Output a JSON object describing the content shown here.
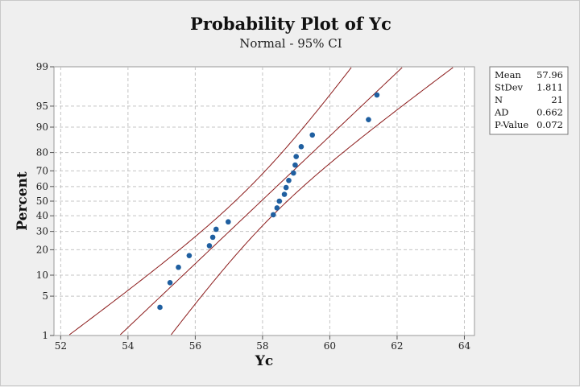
{
  "chart_data": {
    "type": "scatter",
    "title": "Probability Plot of Yc",
    "subtitle": "Normal - 95% CI",
    "xlabel": "Yc",
    "ylabel": "Percent",
    "xlim": [
      51.8,
      64.3
    ],
    "x_ticks": [
      52,
      54,
      56,
      58,
      60,
      62,
      64
    ],
    "y_ticks": [
      1,
      5,
      10,
      20,
      30,
      40,
      50,
      60,
      70,
      80,
      90,
      95,
      99
    ],
    "y_scale": "normal-probability",
    "ylim": [
      1,
      99
    ],
    "grid": true,
    "mean": 57.96,
    "stdev": 1.811,
    "ci_z": 1.96,
    "points": [
      {
        "x": 54.95,
        "y": 3.3
      },
      {
        "x": 55.25,
        "y": 7.9
      },
      {
        "x": 55.5,
        "y": 12.6
      },
      {
        "x": 55.82,
        "y": 17.3
      },
      {
        "x": 56.42,
        "y": 22.0
      },
      {
        "x": 56.52,
        "y": 26.6
      },
      {
        "x": 56.62,
        "y": 31.3
      },
      {
        "x": 56.98,
        "y": 36.0
      },
      {
        "x": 58.32,
        "y": 40.7
      },
      {
        "x": 58.43,
        "y": 45.3
      },
      {
        "x": 58.5,
        "y": 50.0
      },
      {
        "x": 58.65,
        "y": 54.7
      },
      {
        "x": 58.7,
        "y": 59.3
      },
      {
        "x": 58.78,
        "y": 64.0
      },
      {
        "x": 58.92,
        "y": 68.7
      },
      {
        "x": 58.97,
        "y": 73.4
      },
      {
        "x": 59.0,
        "y": 78.0
      },
      {
        "x": 59.15,
        "y": 82.7
      },
      {
        "x": 59.48,
        "y": 87.4
      },
      {
        "x": 61.15,
        "y": 92.1
      },
      {
        "x": 61.4,
        "y": 96.7
      }
    ],
    "colors": {
      "points": "#1f5fa0",
      "lines": "#8b1a1a",
      "grid": "#c4c4c4"
    },
    "legend": {
      "placement": "top-right",
      "rows": [
        {
          "label": "Mean",
          "value": "57.96"
        },
        {
          "label": "StDev",
          "value": "1.811"
        },
        {
          "label": "N",
          "value": "21"
        },
        {
          "label": "AD",
          "value": "0.662"
        },
        {
          "label": "P-Value",
          "value": "0.072"
        }
      ]
    }
  }
}
